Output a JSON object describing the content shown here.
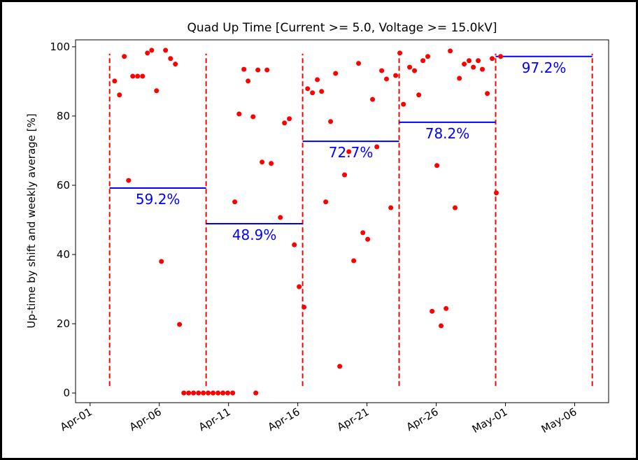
{
  "chart_data": {
    "type": "scatter",
    "title": "Quad Up Time [Current >= 5.0, Voltage >= 15.0kV]",
    "y_label": "Up-time by shift and weekly average [%]",
    "xlim": [
      -0.05,
      38.45
    ],
    "ylim": [
      -2.8,
      102.0
    ],
    "xticks": [
      {
        "value": 1,
        "label": "Apr-01"
      },
      {
        "value": 6,
        "label": "Apr-06"
      },
      {
        "value": 11,
        "label": "Apr-11"
      },
      {
        "value": 16,
        "label": "Apr-16"
      },
      {
        "value": 21,
        "label": "Apr-21"
      },
      {
        "value": 26,
        "label": "Apr-26"
      },
      {
        "value": 31,
        "label": "May-01"
      },
      {
        "value": 36,
        "label": "May-06"
      }
    ],
    "yticks": [
      0,
      20,
      40,
      60,
      80,
      100
    ],
    "series": [
      {
        "color": "#ff0000",
        "x": [
          2.77,
          3.12,
          3.47,
          3.78,
          4.08,
          4.43,
          4.79,
          5.14,
          5.45,
          5.8,
          6.15,
          6.45,
          6.81,
          7.16,
          7.46,
          7.77,
          8.12,
          8.47,
          8.83,
          9.18,
          9.53,
          9.88,
          10.24,
          10.59,
          10.94,
          11.3,
          11.45,
          11.76,
          12.11,
          12.41,
          12.77,
          12.97,
          13.12,
          13.42,
          13.78,
          14.08,
          14.74,
          15.04,
          15.39,
          15.75,
          16.1,
          16.45,
          16.71,
          17.06,
          17.41,
          17.72,
          18.02,
          18.37,
          18.73,
          19.03,
          19.38,
          19.69,
          20.04,
          20.39,
          20.7,
          21.05,
          21.4,
          21.71,
          22.06,
          22.41,
          22.72,
          23.07,
          23.37,
          23.63,
          24.08,
          24.43,
          24.74,
          25.04,
          25.39,
          25.7,
          26.05,
          26.35,
          26.71,
          27.01,
          27.36,
          27.67,
          28.02,
          28.37,
          28.68,
          29.03,
          29.33,
          29.69,
          30.04,
          30.34,
          30.65
        ],
        "values": [
          90.1,
          86.1,
          97.2,
          61.4,
          91.5,
          91.5,
          91.5,
          98.2,
          99.0,
          87.3,
          38.0,
          99.0,
          96.6,
          95.0,
          19.8,
          0,
          0,
          0,
          0,
          0,
          0,
          0,
          0,
          0,
          0,
          0,
          55.2,
          80.6,
          93.5,
          90.1,
          79.8,
          0,
          93.3,
          66.7,
          93.3,
          66.3,
          50.7,
          78.0,
          79.2,
          42.8,
          30.7,
          24.8,
          87.9,
          86.7,
          90.5,
          87.1,
          55.2,
          78.4,
          92.3,
          7.7,
          63.0,
          69.7,
          38.2,
          95.2,
          46.3,
          44.4,
          84.8,
          71.1,
          93.1,
          90.7,
          53.5,
          91.7,
          98.2,
          83.4,
          94.1,
          93.1,
          86.1,
          96.0,
          97.2,
          23.6,
          65.7,
          19.4,
          24.4,
          98.8,
          53.5,
          90.9,
          95.0,
          96.0,
          94.1,
          96.0,
          93.5,
          86.5,
          96.6,
          57.8,
          97.2
        ]
      }
    ],
    "week_boundaries": {
      "color": "#ff0000",
      "x": [
        2.41,
        9.38,
        16.35,
        23.32,
        30.29,
        37.27
      ],
      "ymin": 2,
      "ymax": 98
    },
    "weekly_averages": {
      "color": "#0000ff",
      "x_start": [
        2.41,
        9.38,
        16.35,
        23.32,
        30.29
      ],
      "x_end": [
        9.38,
        16.35,
        23.32,
        30.29,
        37.27
      ],
      "values": [
        59.2,
        48.9,
        72.7,
        78.2,
        97.2
      ],
      "value_labels": [
        "59.2%",
        "48.9%",
        "72.7%",
        "78.2%",
        "97.2%"
      ]
    }
  }
}
